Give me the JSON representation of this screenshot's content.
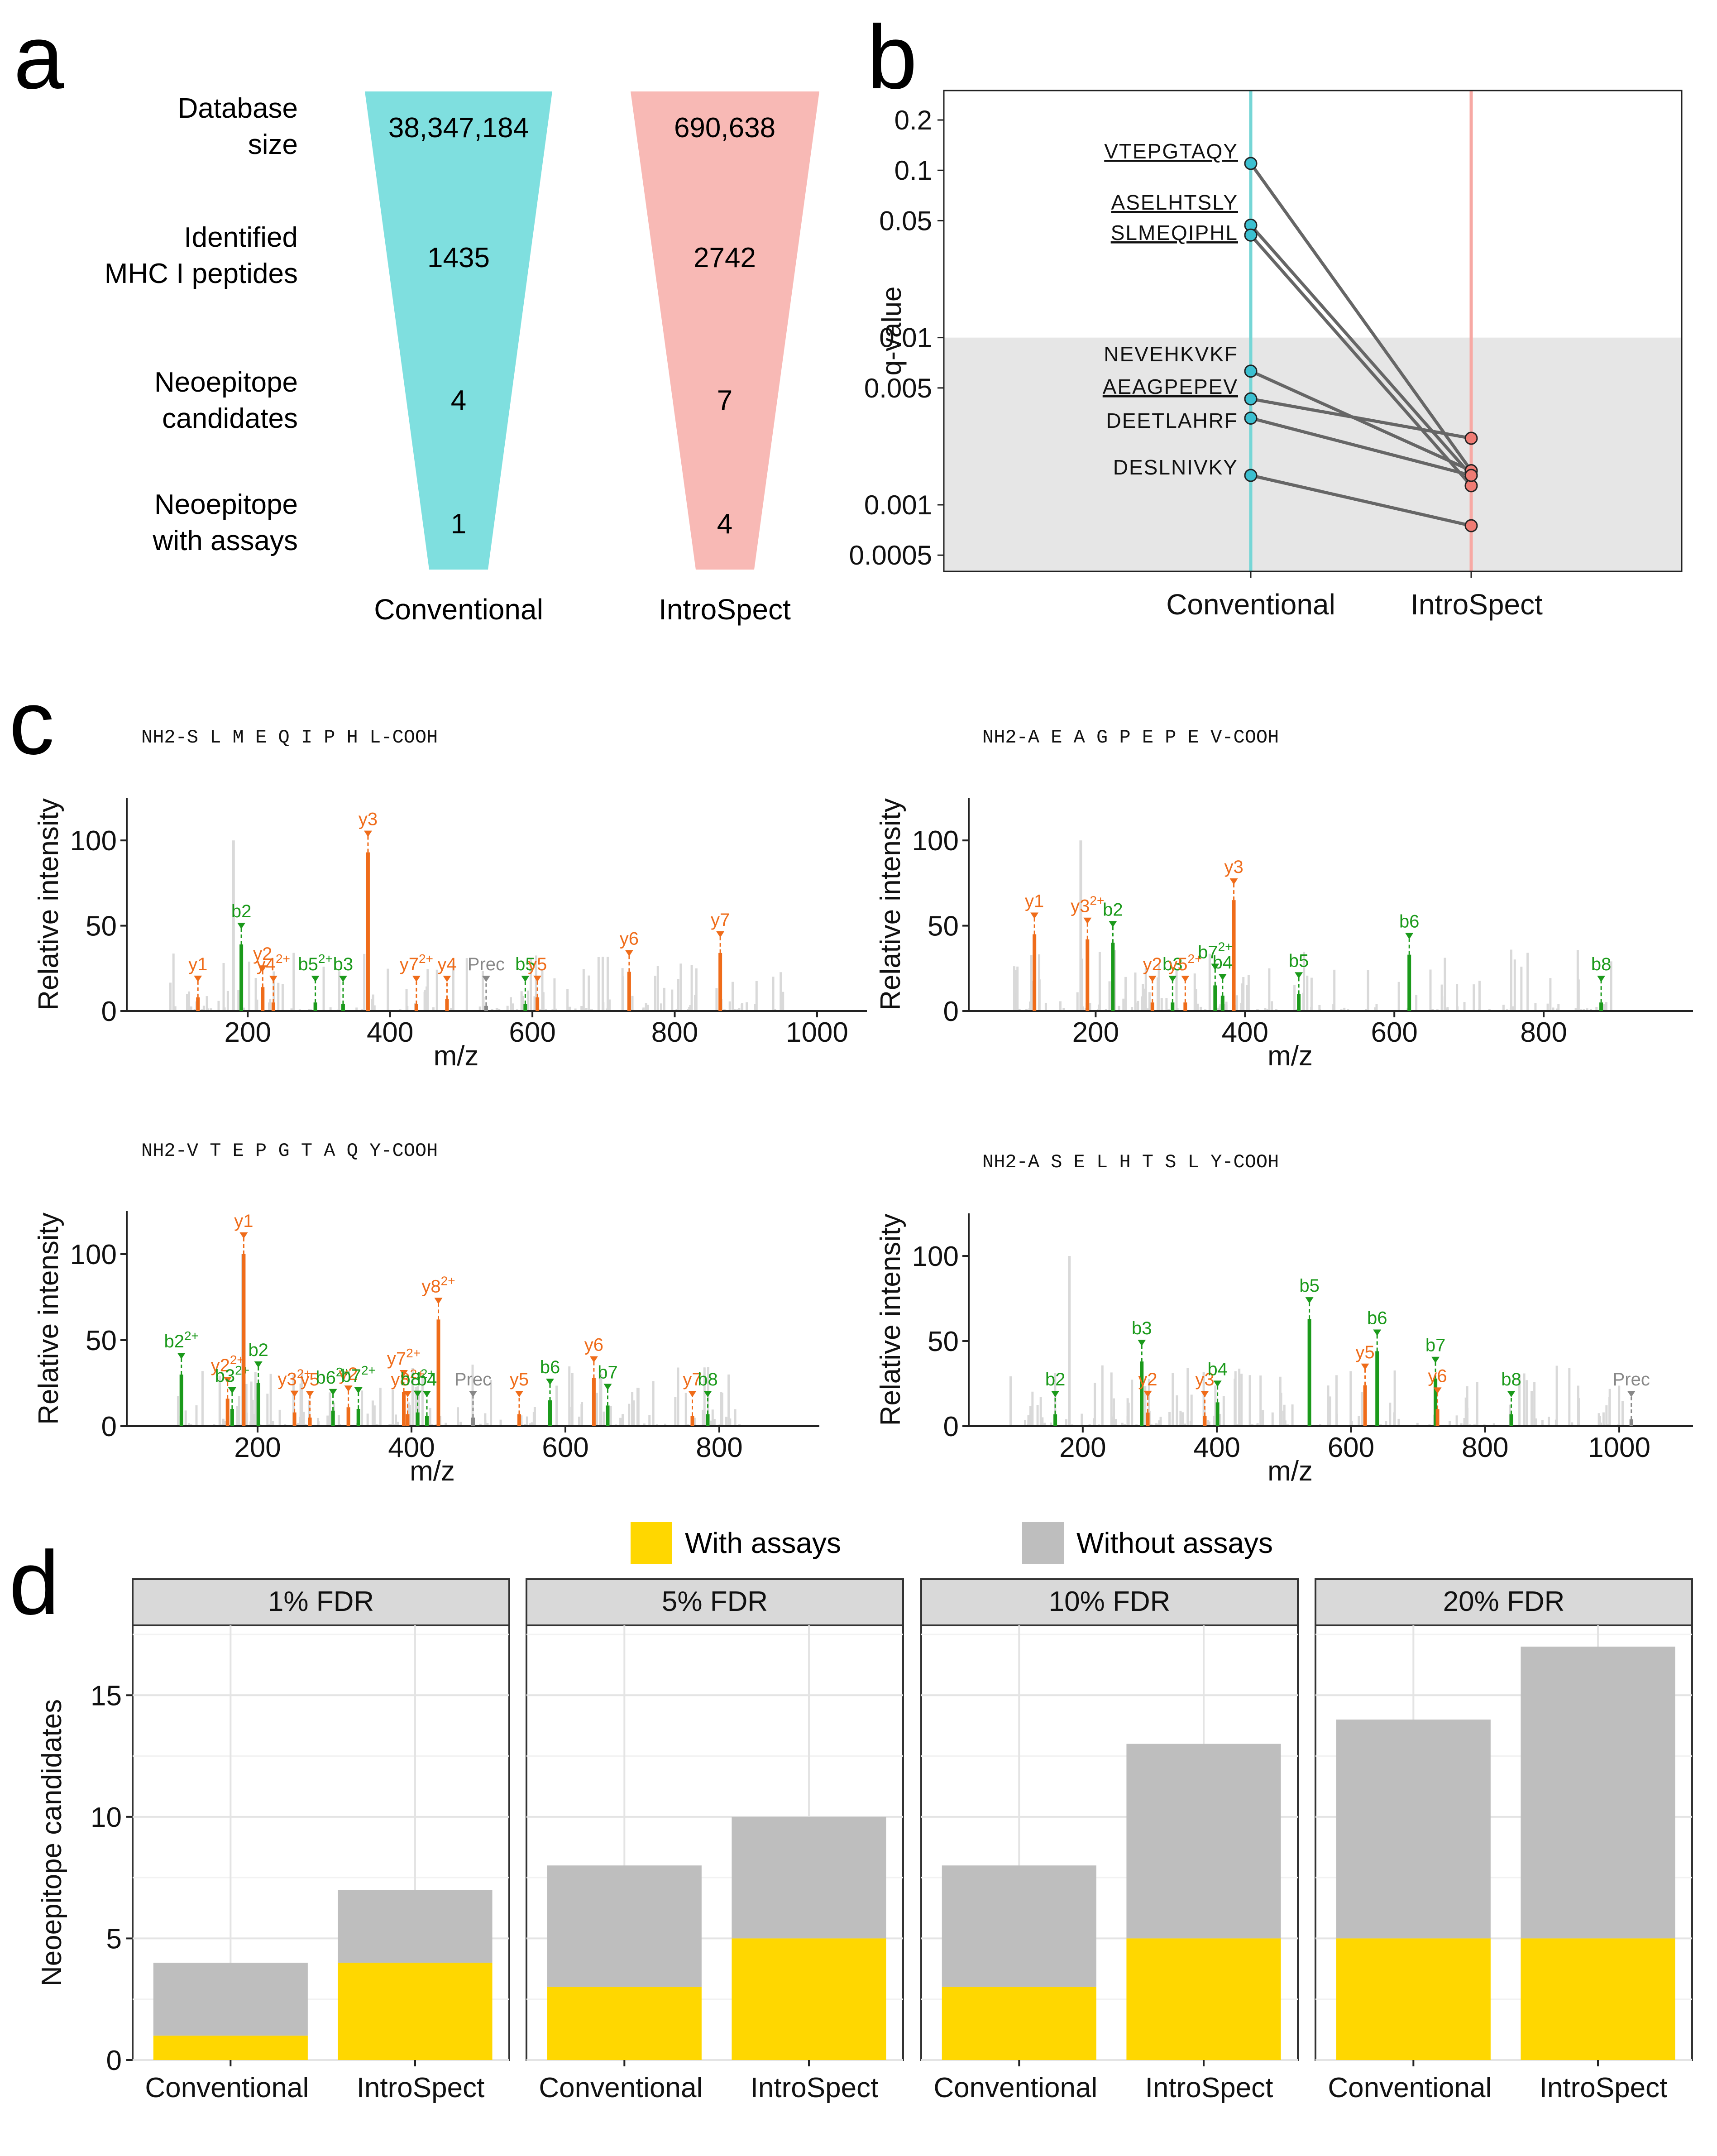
{
  "panels": {
    "a": "a",
    "b": "b",
    "c": "c",
    "d": "d"
  },
  "colors": {
    "conventional": "#7fdfdf",
    "introspect": "#f8b9b5",
    "b_conv_point": "#3bbfd0",
    "b_intro_point": "#ef7c74",
    "b_conv_line": "#76d6d6",
    "b_intro_line": "#f7a9a4",
    "y_ion": "#ef6c1a",
    "b_ion": "#1b9a1b",
    "noise": "#d9d9d9",
    "with_assays": "#ffd700",
    "without_assays": "#bebebe"
  },
  "panel_a": {
    "rows": [
      {
        "label": [
          "Database",
          "size"
        ],
        "conventional": "38,347,184",
        "introspect": "690,638"
      },
      {
        "label": [
          "Identified",
          "MHC I peptides"
        ],
        "conventional": "1435",
        "introspect": "2742"
      },
      {
        "label": [
          "Neoepitope",
          "candidates"
        ],
        "conventional": "4",
        "introspect": "7"
      },
      {
        "label": [
          "Neoepitope",
          "with assays"
        ],
        "conventional": "1",
        "introspect": "4"
      }
    ],
    "xlabels": [
      "Conventional",
      "IntroSpect"
    ]
  },
  "chart_data": [
    {
      "panel": "b",
      "type": "scatter",
      "ylabel": "q-value",
      "yscale": "log",
      "ylim": [
        0.0004,
        0.3
      ],
      "yticks": [
        0.2,
        0.1,
        0.05,
        0.01,
        0.005,
        0.001,
        0.0005
      ],
      "ytick_labels": [
        "0.2",
        "0.1",
        "0.05",
        "0.01",
        "0.005",
        "0.001",
        "0.0005"
      ],
      "threshold": 0.01,
      "categories": [
        "Conventional",
        "IntroSpect"
      ],
      "peptides": [
        {
          "name": "VTEPGTAQY",
          "underlined": true,
          "conventional": 0.11,
          "introspect": 0.0016
        },
        {
          "name": "ASELHTSLY",
          "underlined": true,
          "conventional": 0.047,
          "introspect": 0.0015
        },
        {
          "name": "SLMEQIPHL",
          "underlined": true,
          "conventional": 0.041,
          "introspect": 0.0013
        },
        {
          "name": "NEVEHKVKF",
          "underlined": false,
          "conventional": 0.0063,
          "introspect": 0.0016
        },
        {
          "name": "AEAGPEPEV",
          "underlined": true,
          "conventional": 0.0043,
          "introspect": 0.0025
        },
        {
          "name": "DEETLAHRF",
          "underlined": false,
          "conventional": 0.0033,
          "introspect": 0.0015
        },
        {
          "name": "DESLNIVKY",
          "underlined": false,
          "conventional": 0.0015,
          "introspect": 0.00075
        }
      ]
    },
    {
      "panel": "c1",
      "type": "bar",
      "sequence": "NH2-S L M E Q I P H L-COOH",
      "xlabel": "m/z",
      "ylabel": "Relative intensity",
      "xlim": [
        30,
        1070
      ],
      "ylim": [
        0,
        125
      ],
      "xticks": [
        200,
        400,
        600,
        800,
        1000
      ],
      "yticks": [
        0,
        50,
        100
      ],
      "peaks": [
        {
          "mz": 130,
          "int": 8,
          "ion": "y",
          "label": "y1"
        },
        {
          "mz": 191,
          "int": 39,
          "ion": "b",
          "label": "b2"
        },
        {
          "mz": 221,
          "int": 14,
          "ion": "y",
          "label": "y2"
        },
        {
          "mz": 236,
          "int": 5,
          "ion": "y",
          "label": "y4 2+"
        },
        {
          "mz": 295,
          "int": 5,
          "ion": "b",
          "label": "b5 2+"
        },
        {
          "mz": 334,
          "int": 4,
          "ion": "b",
          "label": "b3"
        },
        {
          "mz": 369,
          "int": 93,
          "ion": "y",
          "label": "y3"
        },
        {
          "mz": 437,
          "int": 4,
          "ion": "y",
          "label": "y7 2+"
        },
        {
          "mz": 480,
          "int": 7,
          "ion": "y",
          "label": "y4"
        },
        {
          "mz": 535,
          "int": 3,
          "ion": "p",
          "label": "Prec"
        },
        {
          "mz": 590,
          "int": 4,
          "ion": "b",
          "label": "b5"
        },
        {
          "mz": 607,
          "int": 8,
          "ion": "y",
          "label": "y5"
        },
        {
          "mz": 736,
          "int": 23,
          "ion": "y",
          "label": "y6"
        },
        {
          "mz": 864,
          "int": 34,
          "ion": "y",
          "label": "y7"
        }
      ]
    },
    {
      "panel": "c2",
      "type": "bar",
      "sequence": "NH2-A E A G P E P E V-COOH",
      "xlabel": "m/z",
      "ylabel": "Relative intensity",
      "xlim": [
        30,
        1000
      ],
      "ylim": [
        0,
        125
      ],
      "xticks": [
        200,
        400,
        600,
        800
      ],
      "yticks": [
        0,
        50,
        100
      ],
      "peaks": [
        {
          "mz": 118,
          "int": 45,
          "ion": "y",
          "label": "y1"
        },
        {
          "mz": 189,
          "int": 42,
          "ion": "y",
          "label": "y3 2+"
        },
        {
          "mz": 223,
          "int": 40,
          "ion": "b",
          "label": "b2"
        },
        {
          "mz": 276,
          "int": 5,
          "ion": "y",
          "label": "y2"
        },
        {
          "mz": 303,
          "int": 5,
          "ion": "b",
          "label": "b3"
        },
        {
          "mz": 320,
          "int": 5,
          "ion": "y",
          "label": "y5 2+"
        },
        {
          "mz": 360,
          "int": 15,
          "ion": "b",
          "label": "b7 2+"
        },
        {
          "mz": 370,
          "int": 9,
          "ion": "b",
          "label": "b4"
        },
        {
          "mz": 385,
          "int": 65,
          "ion": "y",
          "label": "y3"
        },
        {
          "mz": 472,
          "int": 10,
          "ion": "b",
          "label": "b5"
        },
        {
          "mz": 620,
          "int": 33,
          "ion": "b",
          "label": "b6"
        },
        {
          "mz": 877,
          "int": 5,
          "ion": "b",
          "label": "b8"
        }
      ]
    },
    {
      "panel": "c3",
      "type": "bar",
      "sequence": "NH2-V T E P G T A Q Y-COOH",
      "xlabel": "m/z",
      "ylabel": "Relative intensity",
      "xlim": [
        30,
        930
      ],
      "ylim": [
        0,
        125
      ],
      "xticks": [
        200,
        400,
        600,
        800
      ],
      "yticks": [
        0,
        50,
        100
      ],
      "peaks": [
        {
          "mz": 101,
          "int": 30,
          "ion": "b",
          "label": "b2 2+"
        },
        {
          "mz": 161,
          "int": 16,
          "ion": "y",
          "label": "y2 2+"
        },
        {
          "mz": 167,
          "int": 10,
          "ion": "b",
          "label": "b3 2+"
        },
        {
          "mz": 182,
          "int": 100,
          "ion": "y",
          "label": "y1"
        },
        {
          "mz": 201,
          "int": 25,
          "ion": "b",
          "label": "b2"
        },
        {
          "mz": 248,
          "int": 8,
          "ion": "y",
          "label": "y3 2+"
        },
        {
          "mz": 268,
          "int": 5,
          "ion": "y",
          "label": "y5"
        },
        {
          "mz": 298,
          "int": 9,
          "ion": "b",
          "label": "b6 2+"
        },
        {
          "mz": 318,
          "int": 11,
          "ion": "y",
          "label": "y2"
        },
        {
          "mz": 331,
          "int": 10,
          "ion": "b",
          "label": "b7 2+"
        },
        {
          "mz": 390,
          "int": 20,
          "ion": "y",
          "label": "y7 2+"
        },
        {
          "mz": 395,
          "int": 7,
          "ion": "y",
          "label": "y8 2+"
        },
        {
          "mz": 408,
          "int": 8,
          "ion": "b",
          "label": "b8 2+"
        },
        {
          "mz": 420,
          "int": 6,
          "ion": "b",
          "label": "b4"
        },
        {
          "mz": 435,
          "int": 62,
          "ion": "y",
          "label": "y8 2+"
        },
        {
          "mz": 480,
          "int": 5,
          "ion": "p",
          "label": "Prec"
        },
        {
          "mz": 540,
          "int": 7,
          "ion": "y",
          "label": "y5"
        },
        {
          "mz": 580,
          "int": 15,
          "ion": "b",
          "label": "b6"
        },
        {
          "mz": 637,
          "int": 28,
          "ion": "y",
          "label": "y6"
        },
        {
          "mz": 655,
          "int": 12,
          "ion": "b",
          "label": "b7"
        },
        {
          "mz": 765,
          "int": 6,
          "ion": "y",
          "label": "y7"
        },
        {
          "mz": 785,
          "int": 7,
          "ion": "b",
          "label": "b8"
        }
      ]
    },
    {
      "panel": "c4",
      "type": "bar",
      "sequence": "NH2-A S E L H T S L Y-COOH",
      "xlabel": "m/z",
      "ylabel": "Relative intensity",
      "xlim": [
        30,
        1110
      ],
      "ylim": [
        0,
        125
      ],
      "xticks": [
        200,
        400,
        600,
        800,
        1000
      ],
      "yticks": [
        0,
        50,
        100
      ],
      "peaks": [
        {
          "mz": 159,
          "int": 7,
          "ion": "b",
          "label": "b2"
        },
        {
          "mz": 288,
          "int": 38,
          "ion": "b",
          "label": "b3"
        },
        {
          "mz": 297,
          "int": 8,
          "ion": "y",
          "label": "y2"
        },
        {
          "mz": 382,
          "int": 6,
          "ion": "y",
          "label": "y3"
        },
        {
          "mz": 401,
          "int": 14,
          "ion": "b",
          "label": "b4"
        },
        {
          "mz": 538,
          "int": 63,
          "ion": "b",
          "label": "b5"
        },
        {
          "mz": 621,
          "int": 24,
          "ion": "y",
          "label": "y5"
        },
        {
          "mz": 639,
          "int": 44,
          "ion": "b",
          "label": "b6"
        },
        {
          "mz": 726,
          "int": 28,
          "ion": "b",
          "label": "b7"
        },
        {
          "mz": 729,
          "int": 10,
          "ion": "y",
          "label": "y6"
        },
        {
          "mz": 839,
          "int": 7,
          "ion": "b",
          "label": "b8"
        },
        {
          "mz": 1018,
          "int": 4,
          "ion": "p",
          "label": "Prec"
        }
      ]
    },
    {
      "panel": "d",
      "type": "bar",
      "stacked": true,
      "ylabel": "Neoepitope candidates",
      "ylim": [
        0,
        17.5
      ],
      "yticks": [
        0,
        5,
        10,
        15
      ],
      "legend": [
        {
          "name": "With assays",
          "color": "#ffd700"
        },
        {
          "name": "Without assays",
          "color": "#bebebe"
        }
      ],
      "categories": [
        "Conventional",
        "IntroSpect"
      ],
      "facets": [
        {
          "title": "1% FDR",
          "with_assays": [
            1,
            4
          ],
          "total": [
            4,
            7
          ]
        },
        {
          "title": "5% FDR",
          "with_assays": [
            3,
            5
          ],
          "total": [
            8,
            10
          ]
        },
        {
          "title": "10% FDR",
          "with_assays": [
            3,
            5
          ],
          "total": [
            8,
            13
          ]
        },
        {
          "title": "20% FDR",
          "with_assays": [
            5,
            5
          ],
          "total": [
            14,
            17
          ]
        }
      ]
    }
  ]
}
